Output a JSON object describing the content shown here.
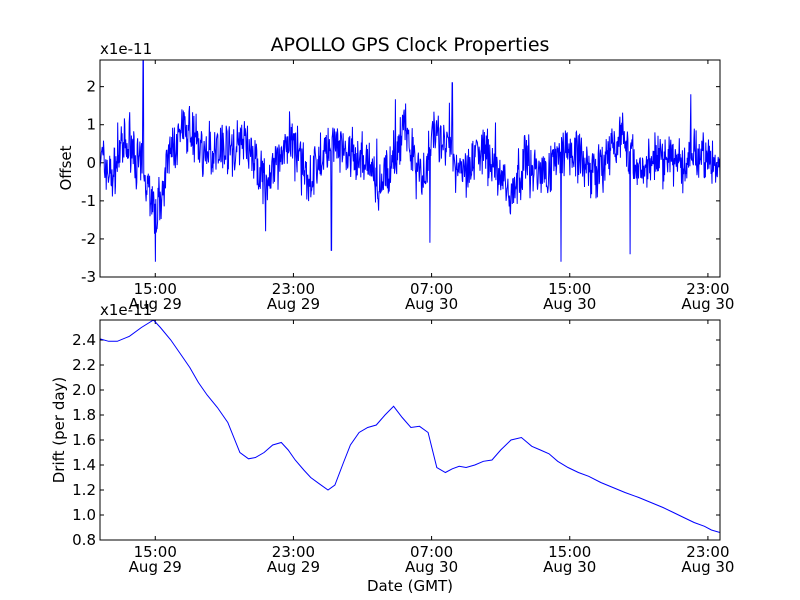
{
  "chart_data": [
    {
      "type": "line",
      "title": "APOLLO GPS Clock Properties",
      "xlabel": "",
      "ylabel": "Offset",
      "multiplier": "x1e-11",
      "x_ticks": [
        {
          "hour": 15,
          "time": "15:00",
          "date": "Aug 29"
        },
        {
          "hour": 23,
          "time": "23:00",
          "date": "Aug 29"
        },
        {
          "hour": 31,
          "time": "07:00",
          "date": "Aug 30"
        },
        {
          "hour": 39,
          "time": "15:00",
          "date": "Aug 30"
        },
        {
          "hour": 47,
          "time": "23:00",
          "date": "Aug 30"
        }
      ],
      "xlim_hours": [
        11.8,
        47.7
      ],
      "ylim": [
        -3,
        2.7
      ],
      "y_ticks": [
        -3,
        -2,
        -1,
        0,
        1,
        2
      ],
      "y_tick_labels": [
        "-3",
        "-2",
        "-1",
        "0",
        "1",
        "2"
      ],
      "series": [
        {
          "color": "#0000ff",
          "style": "noisy",
          "x_hours": [
            11.8,
            12.5,
            13.0,
            13.5,
            14.0,
            14.5,
            15.0,
            15.5,
            16.0,
            16.5,
            17.0,
            17.5,
            18.0,
            18.5,
            19.0,
            19.5,
            20.0,
            20.5,
            21.0,
            21.5,
            22.0,
            22.5,
            23.0,
            23.5,
            24.0,
            24.5,
            25.0,
            25.5,
            26.0,
            26.5,
            27.0,
            27.5,
            28.0,
            28.5,
            29.0,
            29.5,
            30.0,
            30.5,
            31.0,
            31.5,
            32.0,
            32.5,
            33.0,
            33.5,
            34.0,
            34.5,
            35.0,
            35.5,
            36.0,
            36.5,
            37.0,
            37.5,
            38.0,
            38.5,
            39.0,
            39.5,
            40.0,
            40.5,
            41.0,
            41.5,
            42.0,
            42.5,
            43.0,
            43.5,
            44.0,
            44.5,
            45.0,
            45.5,
            46.0,
            46.5,
            47.0,
            47.7
          ],
          "y_baseline": [
            0.2,
            -0.4,
            0.3,
            0.5,
            0.0,
            -0.3,
            -1.4,
            -0.5,
            0.4,
            0.6,
            0.9,
            0.6,
            0.0,
            0.4,
            0.5,
            0.3,
            0.6,
            0.4,
            -0.3,
            -0.6,
            -0.1,
            0.4,
            0.6,
            -0.2,
            -0.4,
            0.0,
            0.4,
            0.5,
            0.1,
            -0.1,
            0.2,
            -0.3,
            -0.6,
            -0.2,
            0.4,
            0.9,
            0.2,
            -0.6,
            0.8,
            0.6,
            0.3,
            -0.1,
            -0.2,
            0.2,
            0.3,
            0.0,
            -0.3,
            -0.8,
            -0.4,
            0.1,
            -0.2,
            -0.3,
            0.0,
            0.3,
            0.4,
            0.2,
            -0.1,
            -0.3,
            -0.2,
            0.5,
            0.8,
            0.2,
            -0.2,
            0.0,
            0.2,
            0.3,
            0.1,
            -0.2,
            0.4,
            0.3,
            0.1,
            -0.2
          ],
          "y_extremes": [
            {
              "hour": 14.3,
              "y": 2.7
            },
            {
              "hour": 15.0,
              "y": -2.6
            },
            {
              "hour": 21.4,
              "y": -1.8
            },
            {
              "hour": 25.2,
              "y": -2.3
            },
            {
              "hour": 30.9,
              "y": -2.1
            },
            {
              "hour": 32.2,
              "y": 2.1
            },
            {
              "hour": 38.5,
              "y": -2.6
            },
            {
              "hour": 42.5,
              "y": -2.4
            },
            {
              "hour": 46.0,
              "y": 1.8
            }
          ]
        }
      ]
    },
    {
      "type": "line",
      "title": "",
      "xlabel": "Date (GMT)",
      "ylabel": "Drift (per day)",
      "multiplier": "x1e-11",
      "x_ticks": [
        {
          "hour": 15,
          "time": "15:00",
          "date": "Aug 29"
        },
        {
          "hour": 23,
          "time": "23:00",
          "date": "Aug 29"
        },
        {
          "hour": 31,
          "time": "07:00",
          "date": "Aug 30"
        },
        {
          "hour": 39,
          "time": "15:00",
          "date": "Aug 30"
        },
        {
          "hour": 47,
          "time": "23:00",
          "date": "Aug 30"
        }
      ],
      "xlim_hours": [
        11.8,
        47.7
      ],
      "ylim": [
        0.8,
        2.56
      ],
      "y_ticks": [
        0.8,
        1.0,
        1.2,
        1.4,
        1.6,
        1.8,
        2.0,
        2.2,
        2.4
      ],
      "y_tick_labels": [
        "0.8",
        "1.0",
        "1.2",
        "1.4",
        "1.6",
        "1.8",
        "2.0",
        "2.2",
        "2.4"
      ],
      "series": [
        {
          "color": "#0000ff",
          "style": "smooth",
          "x_hours": [
            11.8,
            12.3,
            12.8,
            13.5,
            14.2,
            14.9,
            15.3,
            15.9,
            16.5,
            17.0,
            17.5,
            18.0,
            18.6,
            19.2,
            19.9,
            20.4,
            20.8,
            21.3,
            21.8,
            22.3,
            22.7,
            23.1,
            23.6,
            24.0,
            24.5,
            25.0,
            25.4,
            25.9,
            26.3,
            26.8,
            27.3,
            27.8,
            28.3,
            28.8,
            29.3,
            29.8,
            30.3,
            30.8,
            31.3,
            31.8,
            32.2,
            32.6,
            33.0,
            33.5,
            34.0,
            34.5,
            35.0,
            35.6,
            36.2,
            36.8,
            37.3,
            37.8,
            38.3,
            38.9,
            39.5,
            40.1,
            40.8,
            41.5,
            42.2,
            43.0,
            43.7,
            44.4,
            45.0,
            45.6,
            46.2,
            46.8,
            47.2,
            47.7
          ],
          "y_values": [
            2.41,
            2.39,
            2.39,
            2.43,
            2.5,
            2.56,
            2.5,
            2.4,
            2.28,
            2.18,
            2.06,
            1.96,
            1.86,
            1.74,
            1.5,
            1.45,
            1.46,
            1.5,
            1.56,
            1.58,
            1.52,
            1.44,
            1.36,
            1.3,
            1.25,
            1.2,
            1.24,
            1.42,
            1.56,
            1.66,
            1.7,
            1.72,
            1.8,
            1.87,
            1.78,
            1.7,
            1.71,
            1.66,
            1.38,
            1.34,
            1.37,
            1.39,
            1.38,
            1.4,
            1.43,
            1.44,
            1.52,
            1.6,
            1.62,
            1.55,
            1.52,
            1.49,
            1.43,
            1.38,
            1.34,
            1.31,
            1.26,
            1.22,
            1.18,
            1.14,
            1.1,
            1.06,
            1.02,
            0.98,
            0.94,
            0.91,
            0.88,
            0.86
          ]
        }
      ]
    }
  ]
}
